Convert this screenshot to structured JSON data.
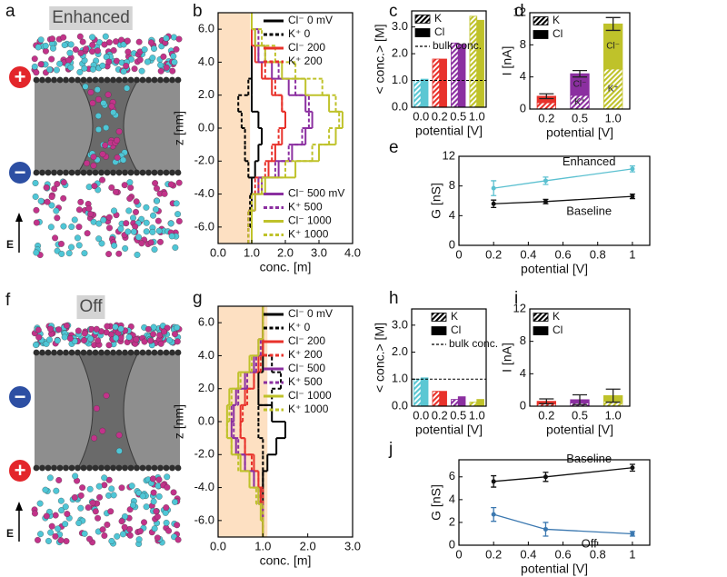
{
  "images": [
    {
      "panel": "a",
      "label": "Enhanced",
      "signs": [
        "+",
        "−"
      ],
      "sign_colors": [
        "#e3262b",
        "#2d4fa3"
      ],
      "field": "E"
    },
    {
      "panel": "f",
      "label": "Off",
      "signs": [
        "−",
        "+"
      ],
      "sign_colors": [
        "#2d4fa3",
        "#e3262b"
      ],
      "field": "E"
    }
  ],
  "chart_data": [
    {
      "type": "step",
      "panel": "b",
      "xlabel": "conc. [m]",
      "ylabel": "z [nm]",
      "z": [
        -6.5,
        -5.5,
        -4.5,
        -3.5,
        -2.5,
        -1.5,
        -0.5,
        0.5,
        1.5,
        2.5,
        3.5,
        4.5,
        5.5,
        6.5
      ],
      "xlim": [
        0,
        4
      ],
      "xticks": [
        {
          "value": 0,
          "label": "0.0"
        },
        {
          "value": 1,
          "label": "1.0"
        },
        {
          "value": 2,
          "label": "2.0"
        },
        {
          "value": 3,
          "label": "3.0"
        },
        {
          "value": 4,
          "label": "4.0"
        }
      ],
      "ylim": [
        -7,
        7
      ],
      "yticks": [
        {
          "value": -6,
          "label": "-6.0"
        },
        {
          "value": -4,
          "label": "-4.0"
        },
        {
          "value": -2,
          "label": "-2.0"
        },
        {
          "value": 0,
          "label": "0.0"
        },
        {
          "value": 2,
          "label": "2.0"
        },
        {
          "value": 4,
          "label": "4.0"
        },
        {
          "value": 6,
          "label": "6.0"
        }
      ],
      "shade": [
        0,
        0.95
      ],
      "shade_color": "#fde0c2",
      "legend_loc": [
        "upper right",
        "lower right"
      ],
      "series": [
        {
          "name": "Cl⁻ 0 mV",
          "color": "#000000",
          "dash": false,
          "values": [
            1.0,
            1.0,
            1.0,
            1.0,
            1.1,
            1.2,
            1.3,
            1.2,
            1.0,
            1.0,
            1.0,
            1.0,
            1.0,
            1.0
          ]
        },
        {
          "name": "K⁺ 0",
          "color": "#000000",
          "dash": true,
          "values": [
            1.0,
            0.95,
            0.95,
            1.0,
            0.9,
            0.8,
            0.8,
            0.7,
            0.6,
            0.9,
            1.0,
            1.0,
            1.0,
            1.0
          ]
        },
        {
          "name": "Cl⁻ 200",
          "color": "#e8322b",
          "dash": false,
          "values": [
            1.0,
            1.0,
            1.1,
            1.2,
            1.5,
            1.7,
            1.9,
            2.0,
            1.9,
            1.6,
            1.3,
            1.1,
            1.0,
            1.0
          ]
        },
        {
          "name": "K⁺ 200",
          "color": "#e8322b",
          "dash": true,
          "values": [
            0.9,
            0.9,
            1.0,
            1.1,
            1.4,
            1.6,
            1.8,
            2.0,
            1.9,
            1.7,
            1.4,
            1.2,
            1.0,
            1.0
          ]
        },
        {
          "name": "Cl⁻ 500 mV",
          "color": "#8b2fa0",
          "dash": false,
          "values": [
            1.0,
            1.0,
            1.1,
            1.3,
            1.8,
            2.2,
            2.6,
            2.8,
            2.6,
            2.1,
            1.6,
            1.2,
            1.1,
            1.0
          ]
        },
        {
          "name": "K⁺ 500",
          "color": "#8b2fa0",
          "dash": true,
          "values": [
            0.9,
            0.9,
            1.0,
            1.2,
            1.7,
            2.1,
            2.5,
            2.7,
            2.7,
            2.3,
            1.8,
            1.4,
            1.2,
            1.0
          ]
        },
        {
          "name": "Cl⁻ 1000",
          "color": "#bfc22a",
          "dash": false,
          "values": [
            1.0,
            1.0,
            1.1,
            1.4,
            2.3,
            3.0,
            3.5,
            3.7,
            3.3,
            2.6,
            1.9,
            1.4,
            1.1,
            1.0
          ]
        },
        {
          "name": "K⁺ 1000",
          "color": "#bfc22a",
          "dash": true,
          "values": [
            0.9,
            0.9,
            1.0,
            1.3,
            2.0,
            2.8,
            3.3,
            3.6,
            3.5,
            3.1,
            2.3,
            1.7,
            1.3,
            1.0
          ]
        }
      ]
    },
    {
      "type": "bar",
      "panel": "c",
      "xlabel": "potential [V]",
      "ylabel": "< conc.> [M]",
      "categories": [
        "0.0",
        "0.2",
        "0.5",
        "1.0"
      ],
      "category_colors": [
        "#5bc7d3",
        "#e8322b",
        "#8b2fa0",
        "#bfc22a"
      ],
      "ylim": [
        0,
        3.6
      ],
      "yticks": [
        {
          "value": 0,
          "label": "0.0"
        },
        {
          "value": 1,
          "label": "1.0"
        },
        {
          "value": 2,
          "label": "2.0"
        },
        {
          "value": 3,
          "label": "3.0"
        }
      ],
      "series": [
        {
          "name": "K",
          "color": "#000000",
          "hatch": true,
          "values": [
            1.0,
            1.8,
            2.4,
            3.4
          ]
        },
        {
          "name": "Cl",
          "color": "#000000",
          "hatch": false,
          "values": [
            1.05,
            1.8,
            2.35,
            3.25
          ]
        }
      ],
      "reference_line": {
        "name": "bulk conc.",
        "value": 1.0
      },
      "legend_loc": "upper left"
    },
    {
      "type": "stacked_bar",
      "panel": "d",
      "xlabel": "potential [V]",
      "ylabel": "I [nA]",
      "categories": [
        "0.2",
        "0.5",
        "1.0"
      ],
      "category_colors": [
        "#e8322b",
        "#8b2fa0",
        "#bfc22a"
      ],
      "ylim": [
        0,
        12
      ],
      "yticks": [
        0,
        4,
        8,
        12
      ],
      "series": [
        {
          "name": "K",
          "color": "#000000",
          "hatch": true,
          "bar_label": "K⁺",
          "values": [
            0.8,
            1.7,
            5.0
          ]
        },
        {
          "name": "Cl",
          "color": "#000000",
          "hatch": false,
          "bar_label": "Cl⁻",
          "values": [
            0.8,
            2.7,
            5.6
          ]
        }
      ],
      "total_errors": [
        0.3,
        0.4,
        0.8
      ],
      "legend_loc": "upper left"
    },
    {
      "type": "line",
      "panel": "e",
      "xlabel": "potential [V]",
      "ylabel": "G [nS]",
      "x": [
        0.2,
        0.5,
        1
      ],
      "xlim": [
        0,
        1.1
      ],
      "xticks": [
        0,
        0.2,
        0.4,
        0.6,
        0.8,
        1
      ],
      "ylim": [
        0,
        12
      ],
      "yticks": [
        0,
        4,
        8,
        12
      ],
      "series": [
        {
          "name": "Enhanced",
          "color": "#5bc0d0",
          "values": [
            7.7,
            8.7,
            10.3
          ],
          "errors": [
            1.0,
            0.5,
            0.4
          ]
        },
        {
          "name": "Baseline",
          "color": "#111111",
          "values": [
            5.6,
            5.9,
            6.6
          ],
          "errors": [
            0.5,
            0.3,
            0.3
          ]
        }
      ]
    },
    {
      "type": "step",
      "panel": "g",
      "xlabel": "conc. [m]",
      "ylabel": "z [nm]",
      "z": [
        -6.5,
        -5.5,
        -4.5,
        -3.5,
        -2.5,
        -1.5,
        -0.5,
        0.5,
        1.5,
        2.5,
        3.5,
        4.5,
        5.5,
        6.5
      ],
      "xlim": [
        0,
        3
      ],
      "xticks": [
        {
          "value": 0,
          "label": "0.0"
        },
        {
          "value": 1,
          "label": "1.0"
        },
        {
          "value": 2,
          "label": "2.0"
        },
        {
          "value": 3,
          "label": "3.0"
        }
      ],
      "ylim": [
        -7,
        7
      ],
      "yticks": [
        {
          "value": -6,
          "label": "-6.0"
        },
        {
          "value": -4,
          "label": "-4.0"
        },
        {
          "value": -2,
          "label": "-2.0"
        },
        {
          "value": 0,
          "label": "0.0"
        },
        {
          "value": 2,
          "label": "2.0"
        },
        {
          "value": 4,
          "label": "4.0"
        },
        {
          "value": 6,
          "label": "6.0"
        }
      ],
      "shade": [
        0,
        1.1
      ],
      "shade_color": "#fde0c2",
      "legend_loc": [
        "upper right"
      ],
      "series": [
        {
          "name": "Cl⁻ 0 mV",
          "color": "#000000",
          "dash": false,
          "values": [
            1.0,
            1.0,
            1.0,
            1.0,
            1.1,
            1.3,
            1.5,
            1.2,
            0.9,
            0.9,
            1.0,
            1.0,
            1.0,
            1.0
          ]
        },
        {
          "name": "K⁺ 0",
          "color": "#000000",
          "dash": true,
          "values": [
            1.0,
            1.0,
            0.95,
            1.0,
            1.0,
            1.0,
            0.9,
            0.9,
            1.2,
            1.4,
            1.2,
            1.0,
            1.0,
            1.0
          ]
        },
        {
          "name": "Cl⁻ 200",
          "color": "#e8322b",
          "dash": false,
          "values": [
            1.0,
            1.0,
            0.95,
            0.9,
            0.8,
            0.6,
            0.5,
            0.5,
            0.6,
            0.8,
            0.9,
            1.0,
            1.0,
            1.0
          ]
        },
        {
          "name": "K⁺ 200",
          "color": "#e8322b",
          "dash": true,
          "values": [
            1.0,
            1.0,
            1.0,
            0.9,
            0.75,
            0.6,
            0.5,
            0.55,
            0.65,
            0.8,
            0.95,
            1.0,
            1.0,
            1.0
          ]
        },
        {
          "name": "Cl⁻ 500",
          "color": "#8b2fa0",
          "dash": false,
          "values": [
            1.0,
            1.0,
            0.9,
            0.8,
            0.6,
            0.4,
            0.3,
            0.35,
            0.4,
            0.6,
            0.8,
            0.9,
            1.0,
            1.0
          ]
        },
        {
          "name": "K⁺ 500",
          "color": "#8b2fa0",
          "dash": true,
          "values": [
            1.0,
            1.0,
            0.9,
            0.8,
            0.6,
            0.45,
            0.35,
            0.3,
            0.45,
            0.65,
            0.85,
            0.95,
            1.0,
            1.0
          ]
        },
        {
          "name": "Cl⁻ 1000",
          "color": "#bfc22a",
          "dash": false,
          "values": [
            1.0,
            0.95,
            0.9,
            0.7,
            0.5,
            0.3,
            0.2,
            0.2,
            0.25,
            0.45,
            0.7,
            0.9,
            1.0,
            1.0
          ]
        },
        {
          "name": "K⁺ 1000",
          "color": "#bfc22a",
          "dash": true,
          "values": [
            1.0,
            1.0,
            0.85,
            0.7,
            0.45,
            0.3,
            0.2,
            0.25,
            0.3,
            0.5,
            0.75,
            0.9,
            1.0,
            1.0
          ]
        }
      ]
    },
    {
      "type": "bar",
      "panel": "h",
      "xlabel": "potential [V]",
      "ylabel": "< conc.> [M]",
      "categories": [
        "0.0",
        "0.2",
        "0.5",
        "1.0"
      ],
      "category_colors": [
        "#5bc7d3",
        "#e8322b",
        "#8b2fa0",
        "#bfc22a"
      ],
      "ylim": [
        0,
        3.6
      ],
      "yticks": [
        {
          "value": 0,
          "label": "0.0"
        },
        {
          "value": 1,
          "label": "1.0"
        },
        {
          "value": 2,
          "label": "2.0"
        },
        {
          "value": 3,
          "label": "3.0"
        }
      ],
      "series": [
        {
          "name": "K",
          "color": "#000000",
          "hatch": true,
          "values": [
            1.0,
            0.55,
            0.25,
            0.15
          ]
        },
        {
          "name": "Cl",
          "color": "#000000",
          "hatch": false,
          "values": [
            1.05,
            0.55,
            0.35,
            0.25
          ]
        }
      ],
      "reference_line": {
        "name": "bulk conc.",
        "value": 1.0
      },
      "legend_loc": "upper right"
    },
    {
      "type": "stacked_bar",
      "panel": "i",
      "xlabel": "potential [V]",
      "ylabel": "I [nA]",
      "categories": [
        "0.2",
        "0.5",
        "1.0"
      ],
      "category_colors": [
        "#e8322b",
        "#8b2fa0",
        "#bfc22a"
      ],
      "ylim": [
        0,
        12
      ],
      "yticks": [
        0,
        4,
        8,
        12
      ],
      "series": [
        {
          "name": "K",
          "color": "#000000",
          "hatch": true,
          "values": [
            0.3,
            0.4,
            0.6
          ]
        },
        {
          "name": "Cl",
          "color": "#000000",
          "hatch": false,
          "values": [
            0.3,
            0.4,
            0.7
          ]
        }
      ],
      "total_errors": [
        0.3,
        0.6,
        0.8
      ],
      "legend_loc": "upper left"
    },
    {
      "type": "line",
      "panel": "j",
      "xlabel": "potential [V]",
      "ylabel": "G [nS]",
      "x": [
        0.2,
        0.5,
        1
      ],
      "xlim": [
        0,
        1.1
      ],
      "xticks": [
        0,
        0.2,
        0.4,
        0.6,
        0.8,
        1
      ],
      "ylim": [
        0,
        7.5
      ],
      "yticks": [
        0,
        2,
        4,
        6
      ],
      "series": [
        {
          "name": "Baseline",
          "color": "#111111",
          "values": [
            5.6,
            6.0,
            6.8
          ],
          "errors": [
            0.5,
            0.4,
            0.3
          ]
        },
        {
          "name": "Off",
          "color": "#3b78b0",
          "values": [
            2.7,
            1.4,
            1.0
          ],
          "errors": [
            0.6,
            0.6,
            0.2
          ]
        }
      ]
    }
  ]
}
